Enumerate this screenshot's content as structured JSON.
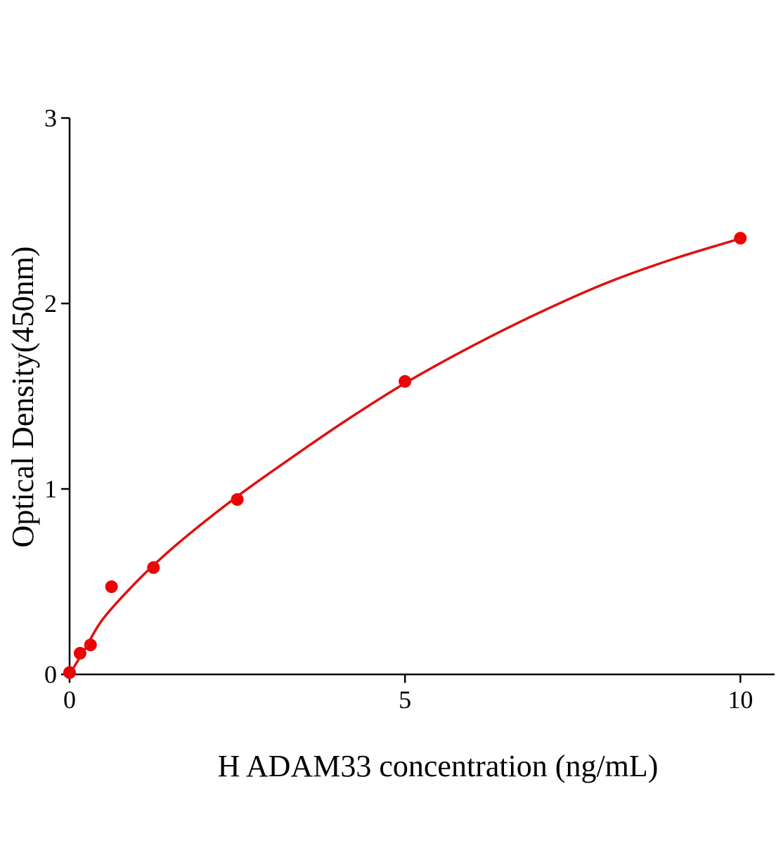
{
  "chart_data": {
    "type": "scatter",
    "x_label": "H ADAM33 concentration (ng/mL)",
    "y_label": "Optical Density(450nm)",
    "xlim": [
      0,
      10.51
    ],
    "xticks": [
      0,
      5,
      10
    ],
    "ylim": [
      0,
      3
    ],
    "yticks": [
      0,
      1,
      2,
      3
    ],
    "series": [
      {
        "type": "scatter",
        "color": "#ee0000",
        "x": [
          0,
          0.156,
          0.312,
          0.625,
          1.25,
          2.5,
          5,
          10
        ],
        "values": [
          0.01,
          0.114,
          0.159,
          0.473,
          0.576,
          0.943,
          1.58,
          2.352
        ]
      },
      {
        "type": "line",
        "color": "#e01010",
        "x": [
          0,
          0.1,
          0.25,
          0.5,
          1,
          1.5,
          2,
          2.5,
          3,
          4,
          5,
          6,
          7,
          8,
          9,
          10
        ],
        "values": [
          0,
          0.06,
          0.15,
          0.3,
          0.5,
          0.67,
          0.82,
          0.96,
          1.09,
          1.34,
          1.57,
          1.77,
          1.95,
          2.11,
          2.24,
          2.35
        ]
      }
    ]
  }
}
